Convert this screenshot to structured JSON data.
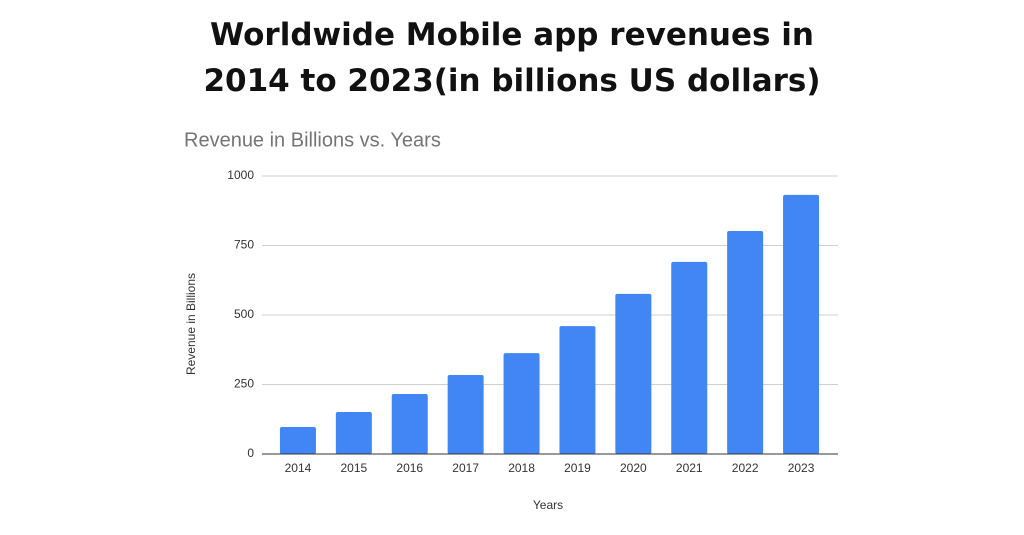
{
  "chart_data": {
    "type": "bar",
    "title": "Worldwide Mobile app revenues in 2014 to 2023(in billions US dollars)",
    "subtitle": "Revenue in Billions vs. Years",
    "x_label": "Years",
    "y_label": "Revenue in Billions",
    "categories": [
      "2014",
      "2015",
      "2016",
      "2017",
      "2018",
      "2019",
      "2020",
      "2021",
      "2022",
      "2023"
    ],
    "values": [
      97,
      151,
      216,
      284,
      363,
      460,
      576,
      691,
      802,
      932
    ],
    "color": "#4285f4",
    "ylim": [
      0,
      1000
    ],
    "yticks": [
      0,
      250,
      500,
      750,
      1000
    ],
    "grid": true
  }
}
